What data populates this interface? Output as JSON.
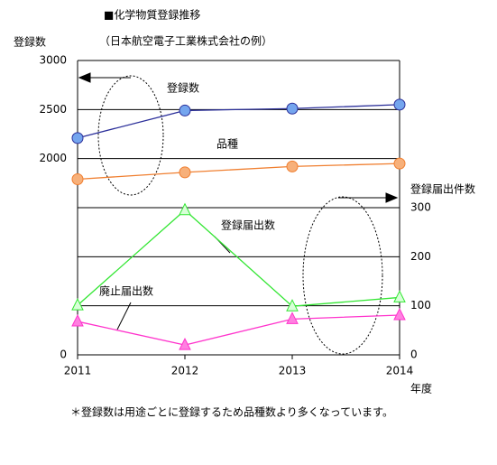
{
  "chart_data": {
    "type": "line",
    "title": "■化学物質登録推移",
    "subtitle": "（日本航空電子工業株式会社の例）",
    "y_label": "登録数",
    "y2_label": "登録届出件数",
    "x_label": "年度",
    "footnote": "＊登録数は用途ごとに登録するため品種数より多くなっています。",
    "x": [
      2011,
      2012,
      2013,
      2014
    ],
    "xlim": [
      2011,
      2014
    ],
    "xticks": [
      2011,
      2012,
      2013,
      2014
    ],
    "ylim": [
      0,
      3000
    ],
    "yticks": [
      0,
      2000,
      2500,
      3000
    ],
    "y2lim": [
      0,
      600
    ],
    "y2ticks": [
      0,
      100,
      200,
      300
    ],
    "series": [
      {
        "name": "登録数",
        "color": "#2b2f9a",
        "marker_color": "#74a5ee",
        "marker": "circle",
        "values": [
          2210,
          2490,
          2510,
          2550
        ]
      },
      {
        "name": "品種",
        "color": "#f07f30",
        "marker_color": "#f7b07a",
        "marker": "circle",
        "values": [
          1790,
          1860,
          1920,
          1950
        ]
      },
      {
        "name": "登録届出数",
        "color": "#33e633",
        "marker_color": "#d8ffd8",
        "marker": "triangle",
        "axis": "y2",
        "values": [
          101,
          295,
          99,
          117
        ]
      },
      {
        "name": "廃止届出数",
        "color": "#ff33cc",
        "marker_color": "#ff80e0",
        "marker": "triangle",
        "axis": "y2",
        "values": [
          68,
          20,
          73,
          81
        ]
      }
    ]
  }
}
